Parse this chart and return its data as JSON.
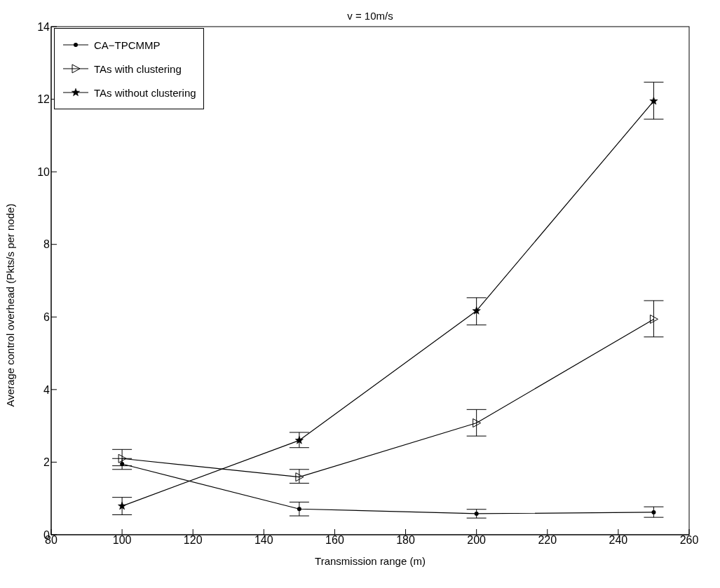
{
  "chart_data": {
    "type": "line",
    "title": "v = 10m/s",
    "xlabel": "Transmission range (m)",
    "ylabel": "Average control overhead (Pkts/s per node)",
    "x": [
      100,
      150,
      200,
      250
    ],
    "series": [
      {
        "name": "CA−TPCMMP",
        "color": "#000000",
        "marker": "circle",
        "values": [
          1.95,
          0.71,
          0.58,
          0.62
        ],
        "errors": [
          [
            1.8,
            2.1
          ],
          [
            0.52,
            0.9
          ],
          [
            0.46,
            0.7
          ],
          [
            0.48,
            0.77
          ]
        ]
      },
      {
        "name": "TAs with clustering",
        "color": "#000000",
        "marker": "triangle",
        "values": [
          2.1,
          1.59,
          3.08,
          5.94
        ],
        "errors": [
          [
            1.9,
            2.35
          ],
          [
            1.42,
            1.8
          ],
          [
            2.72,
            3.45
          ],
          [
            5.45,
            6.45
          ]
        ]
      },
      {
        "name": "TAs without clustering",
        "color": "#000000",
        "marker": "star",
        "values": [
          0.79,
          2.6,
          6.17,
          11.95
        ],
        "errors": [
          [
            0.55,
            1.03
          ],
          [
            2.4,
            2.82
          ],
          [
            5.78,
            6.53
          ],
          [
            11.45,
            12.47
          ]
        ]
      }
    ],
    "xlim": [
      80,
      260
    ],
    "xticks": [
      80,
      100,
      120,
      140,
      160,
      180,
      200,
      220,
      240,
      260
    ],
    "ylim": [
      0,
      14
    ],
    "yticks": [
      0,
      2,
      4,
      6,
      8,
      10,
      12,
      14
    ],
    "grid": false,
    "legend": "top left",
    "line_style": "solid"
  }
}
